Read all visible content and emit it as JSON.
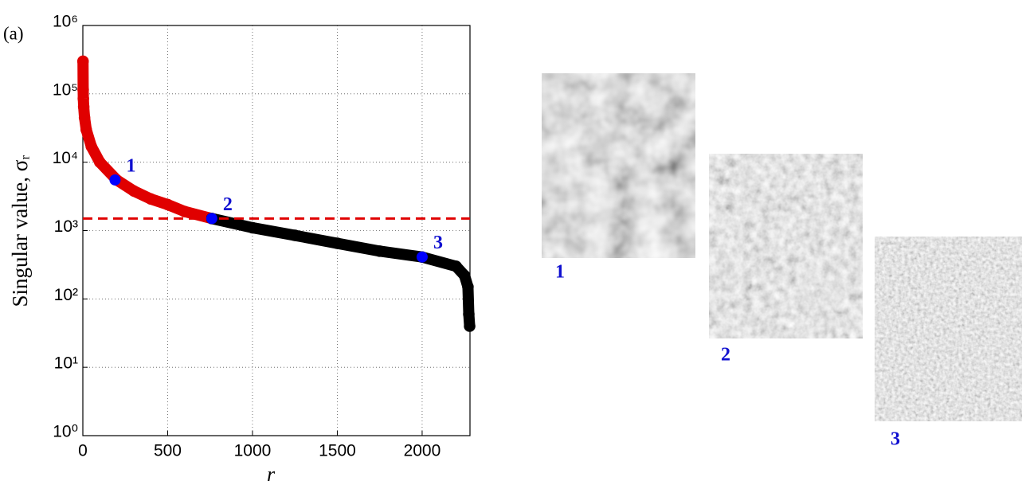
{
  "chart_data": {
    "type": "line",
    "panel_label": "(a)",
    "x_label": "r",
    "y_label": "Singular value, σᵣ",
    "log_y": true,
    "grid": true,
    "xlim": [
      0,
      2282
    ],
    "ylim": [
      1,
      1000000
    ],
    "xticks": [
      0,
      500,
      1000,
      1500,
      2000
    ],
    "yticks": [
      {
        "value": 1,
        "label": "10⁰"
      },
      {
        "value": 10,
        "label": "10¹"
      },
      {
        "value": 100,
        "label": "10²"
      },
      {
        "value": 1000,
        "label": "10³"
      },
      {
        "value": 10000,
        "label": "10⁴"
      },
      {
        "value": 100000,
        "label": "10⁵"
      },
      {
        "value": 1000000,
        "label": "10⁶"
      }
    ],
    "series": [
      {
        "color": "#e00000",
        "x": [
          1,
          2,
          3,
          5,
          10,
          20,
          50,
          100,
          200,
          300,
          400,
          500,
          600,
          760
        ],
        "values": [
          300000,
          115000,
          85000,
          65000,
          45000,
          30000,
          17000,
          10000,
          5500,
          3800,
          2900,
          2400,
          1900,
          1500
        ]
      },
      {
        "color": "#000000",
        "x": [
          760,
          1000,
          1250,
          1500,
          1750,
          2000,
          2200,
          2250,
          2270,
          2275,
          2280
        ],
        "values": [
          1500,
          1100,
          850,
          650,
          500,
          410,
          300,
          220,
          150,
          60,
          40
        ]
      }
    ],
    "threshold": {
      "value": 1500,
      "color": "#e00000"
    },
    "highlights": {
      "color": "#0000ff",
      "x": [
        190,
        760,
        2000
      ],
      "values": [
        5500,
        1500,
        410
      ],
      "labels": [
        "1",
        "2",
        "3"
      ]
    }
  },
  "panels": [
    {
      "caption": "1"
    },
    {
      "caption": "2"
    },
    {
      "caption": "3"
    }
  ]
}
